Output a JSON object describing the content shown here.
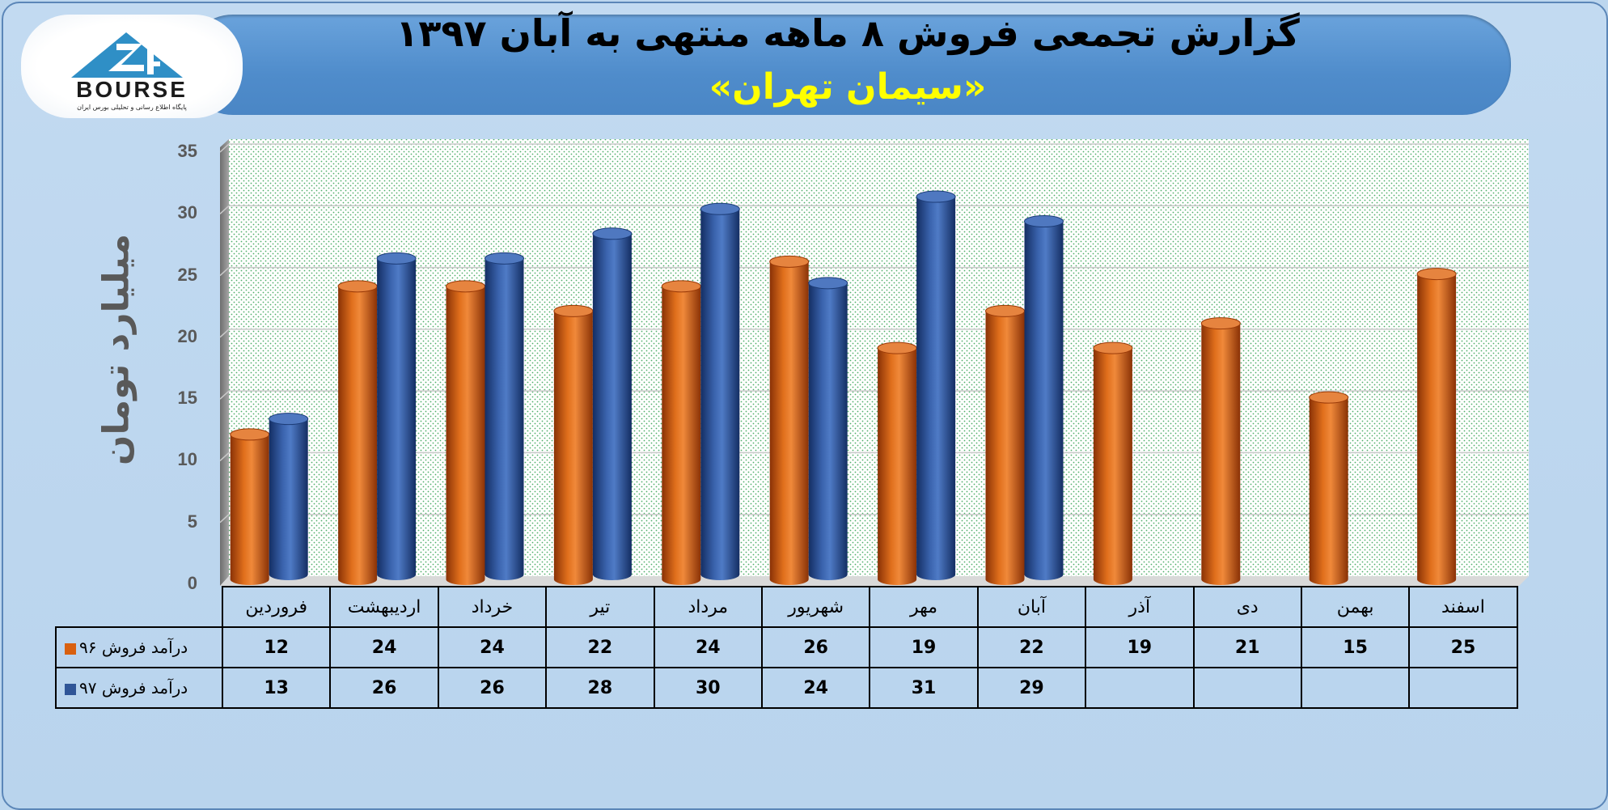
{
  "title": {
    "line1": "گزارش تجمعی فروش ۸ ماهه منتهی به آبان ۱۳۹۷",
    "line2": "«سیمان تهران»"
  },
  "logo": {
    "text": "BOURSE",
    "subtitle": "پایگاه اطلاع رسانی و تحلیلی بورس ایران",
    "icon": "bourse-24-logo-icon"
  },
  "colors": {
    "series96": "#d9600f",
    "series97": "#2f5597",
    "banner": "#4f8ccb",
    "subtitle": "#ffff00"
  },
  "chart_data": {
    "type": "bar",
    "title": "گزارش تجمعی فروش ۸ ماهه منتهی به آبان ۱۳۹۷",
    "subtitle": "«سیمان تهران»",
    "xlabel": "",
    "ylabel": "میلیارد تومان",
    "ylim": [
      0,
      35
    ],
    "yticks": [
      0,
      5,
      10,
      15,
      20,
      25,
      30,
      35
    ],
    "grid": true,
    "legend": "data-table",
    "categories": [
      "فروردین",
      "اردیبهشت",
      "خرداد",
      "تیر",
      "مرداد",
      "شهریور",
      "مهر",
      "آبان",
      "آذر",
      "دی",
      "بهمن",
      "اسفند"
    ],
    "series": [
      {
        "name": "درآمد فروش ۹۶",
        "values": [
          12,
          24,
          24,
          22,
          24,
          26,
          19,
          22,
          19,
          21,
          15,
          25
        ]
      },
      {
        "name": "درآمد فروش ۹۷",
        "values": [
          13,
          26,
          26,
          28,
          30,
          24,
          31,
          29,
          null,
          null,
          null,
          null
        ]
      }
    ]
  }
}
